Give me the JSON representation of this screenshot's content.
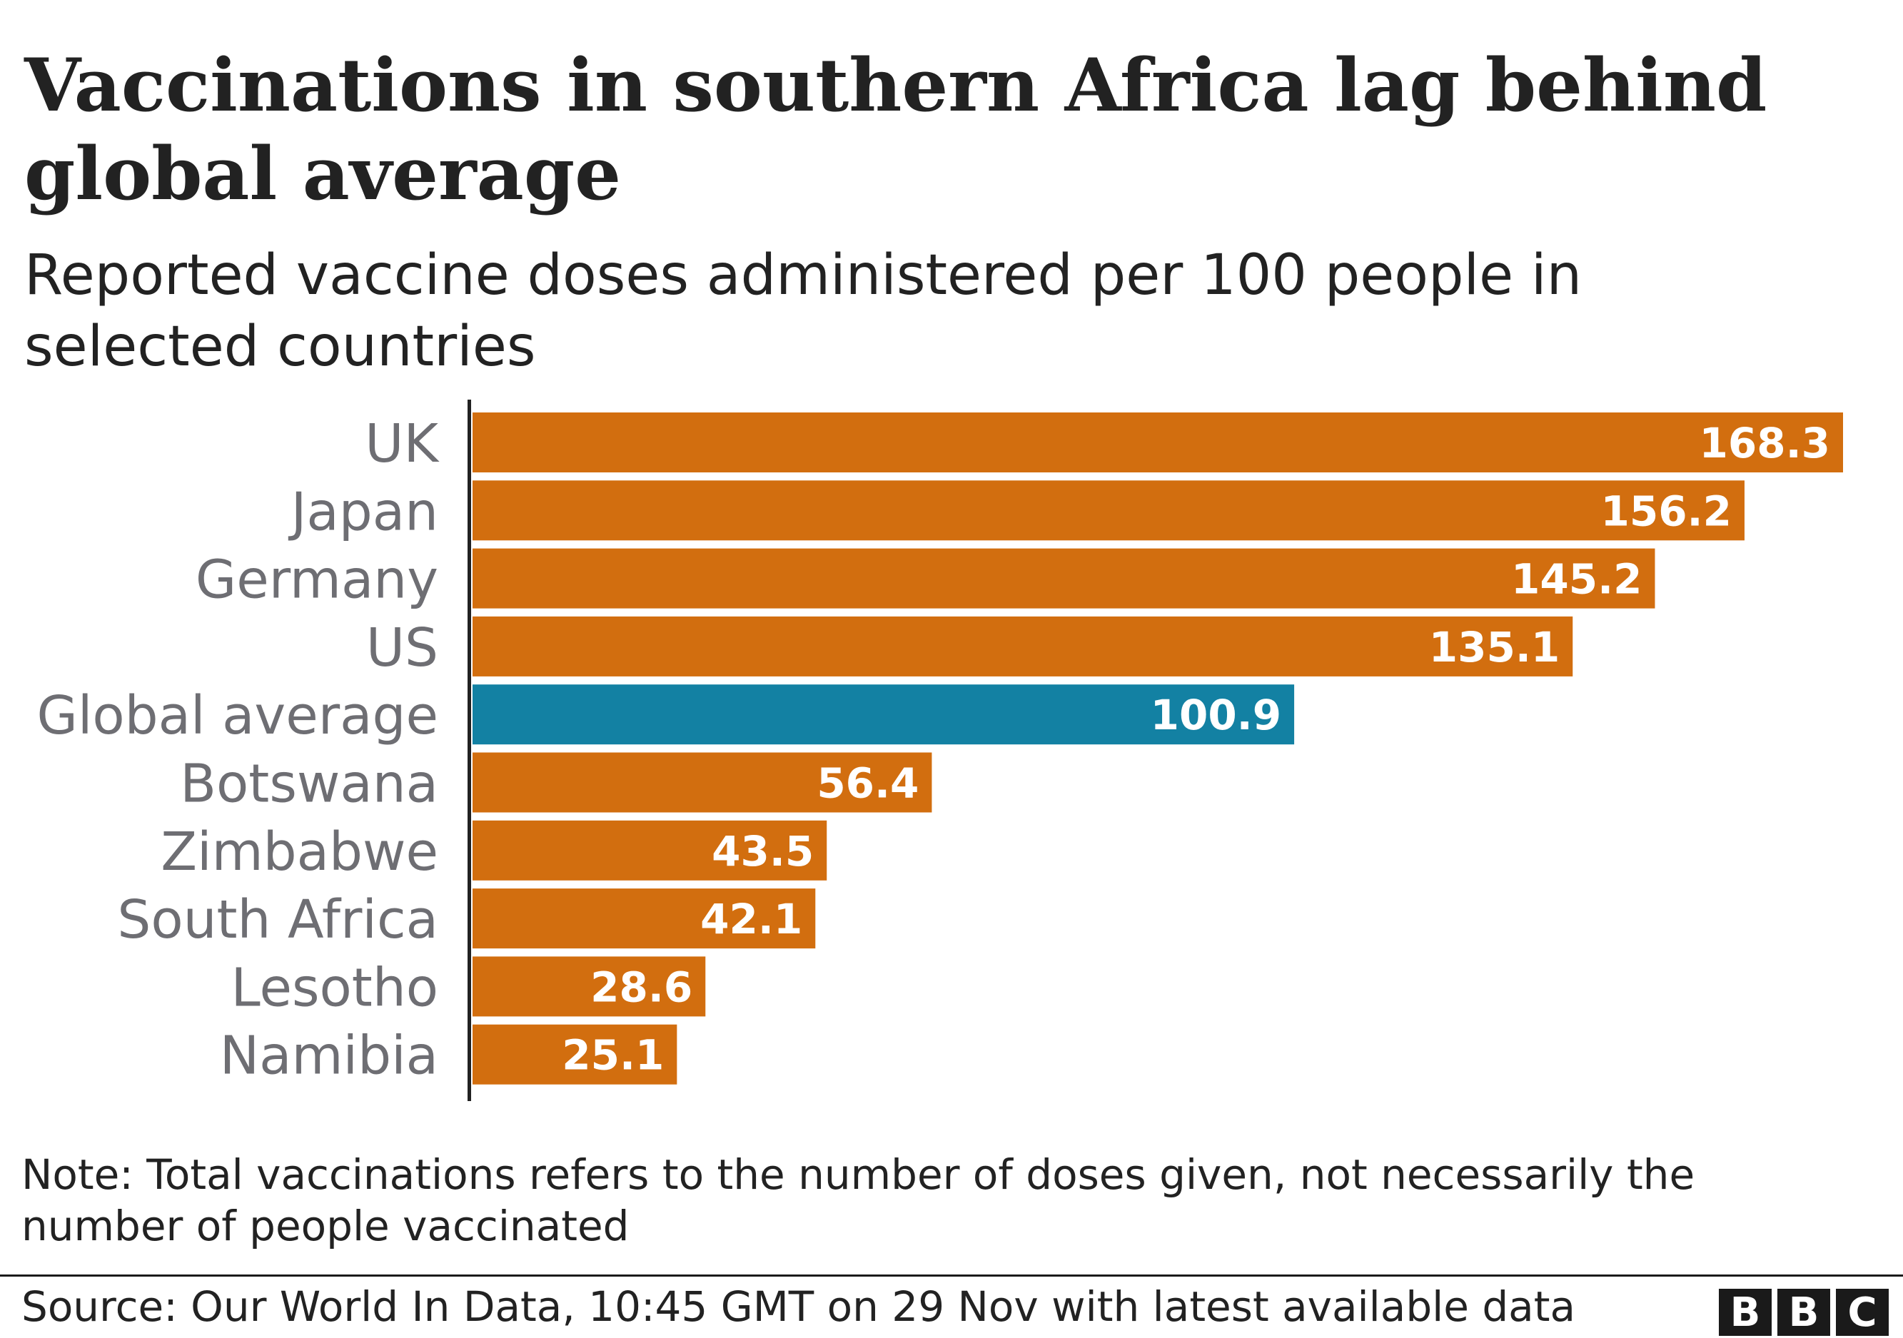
{
  "title": "Vaccinations in southern Africa lag behind global average",
  "subtitle": "Reported vaccine doses administered per 100 people in selected countries",
  "note": "Note: Total vaccinations refers to the number of doses given, not necessarily the number of people vaccinated",
  "source": "Source: Our World In Data, 10:45 GMT on 29 Nov with latest available data",
  "logo": {
    "letters": [
      "B",
      "B",
      "C"
    ]
  },
  "colors": {
    "bar": "#d26e0f",
    "highlight": "#1381a3",
    "label": "#6e6e73",
    "value_text": "#ffffff",
    "axis": "#222222"
  },
  "chart_data": {
    "type": "bar",
    "orientation": "horizontal",
    "categories": [
      "UK",
      "Japan",
      "Germany",
      "US",
      "Global average",
      "Botswana",
      "Zimbabwe",
      "South Africa",
      "Lesotho",
      "Namibia"
    ],
    "values": [
      168.3,
      156.2,
      145.2,
      135.1,
      100.9,
      56.4,
      43.5,
      42.1,
      28.6,
      25.1
    ],
    "highlight": "Global average",
    "xlim": [
      0,
      170
    ],
    "grid": false,
    "data_labels": true
  }
}
